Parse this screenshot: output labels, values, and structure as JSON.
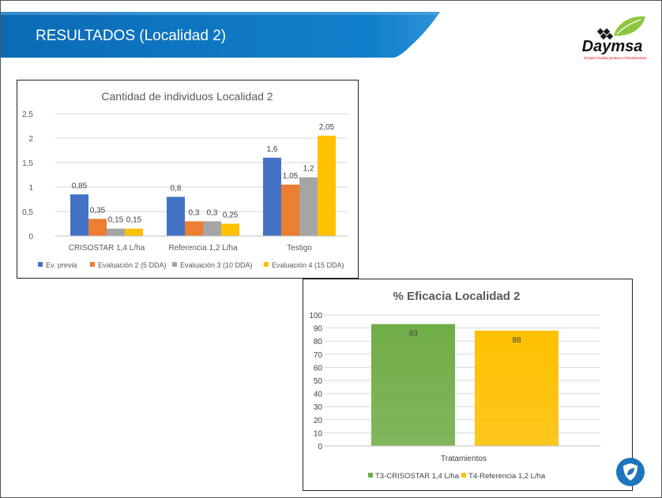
{
  "header": {
    "title": "RESULTADOS (Localidad 2)"
  },
  "logo": {
    "brand": "Daymsa",
    "tagline": "Europe's leading producer of biostimulants"
  },
  "colors": {
    "banner": "#0E74BC",
    "banner_light": "#5AA6DB",
    "leaf": "#8DC63F",
    "brand_red": "#E30613",
    "shield": "#1D75BC"
  },
  "icons": {
    "footer": "shield-leaf-icon"
  },
  "chart_data": [
    {
      "type": "bar",
      "title": "Cantidad de individuos Localidad 2",
      "categories": [
        "CRISOSTAR 1,4 L/ha",
        "Referencia 1,2 L/ha",
        "Testigo"
      ],
      "series": [
        {
          "name": "Ev. previa",
          "values": [
            0.85,
            0.8,
            1.6
          ],
          "labels": [
            "0,85",
            "0,8",
            "1,6"
          ],
          "color": "#4472C4"
        },
        {
          "name": "Evaluación 2 (5 DDA)",
          "values": [
            0.35,
            0.3,
            1.05
          ],
          "labels": [
            "0,35",
            "0,3",
            "1,05"
          ],
          "color": "#ED7D31"
        },
        {
          "name": "Evaluación 3 (10 DDA)",
          "values": [
            0.15,
            0.3,
            1.2
          ],
          "labels": [
            "0,15",
            "0,3",
            "1,2"
          ],
          "color": "#A5A5A5"
        },
        {
          "name": "Evaluación 4 (15 DDA)",
          "values": [
            0.15,
            0.25,
            2.05
          ],
          "labels": [
            "0,15",
            "0,25",
            "2,05"
          ],
          "color": "#FFC000"
        }
      ],
      "yticks": [
        0,
        0.5,
        1,
        1.5,
        2,
        2.5
      ],
      "ytick_labels": [
        "0",
        "0,5",
        "1",
        "1,5",
        "2",
        "2,5"
      ],
      "ylim": [
        0,
        2.5
      ],
      "xlabel": "",
      "ylabel": "",
      "legend": "bottom",
      "grid": true
    },
    {
      "type": "bar",
      "title": "% Eficacia Localidad 2",
      "xlabel": "Tratamientos",
      "ylabel": "",
      "categories": [
        "T3-CRISOSTAR 1,4 L/ha",
        "T4-Referencia 1,2 L/ha"
      ],
      "values": [
        93,
        88
      ],
      "labels": [
        "93",
        "88"
      ],
      "colors": [
        "#70AD47",
        "#FFC000"
      ],
      "yticks": [
        0,
        10,
        20,
        30,
        40,
        50,
        60,
        70,
        80,
        90,
        100
      ],
      "ylim": [
        0,
        100
      ],
      "legend": "bottom",
      "grid": true
    }
  ]
}
